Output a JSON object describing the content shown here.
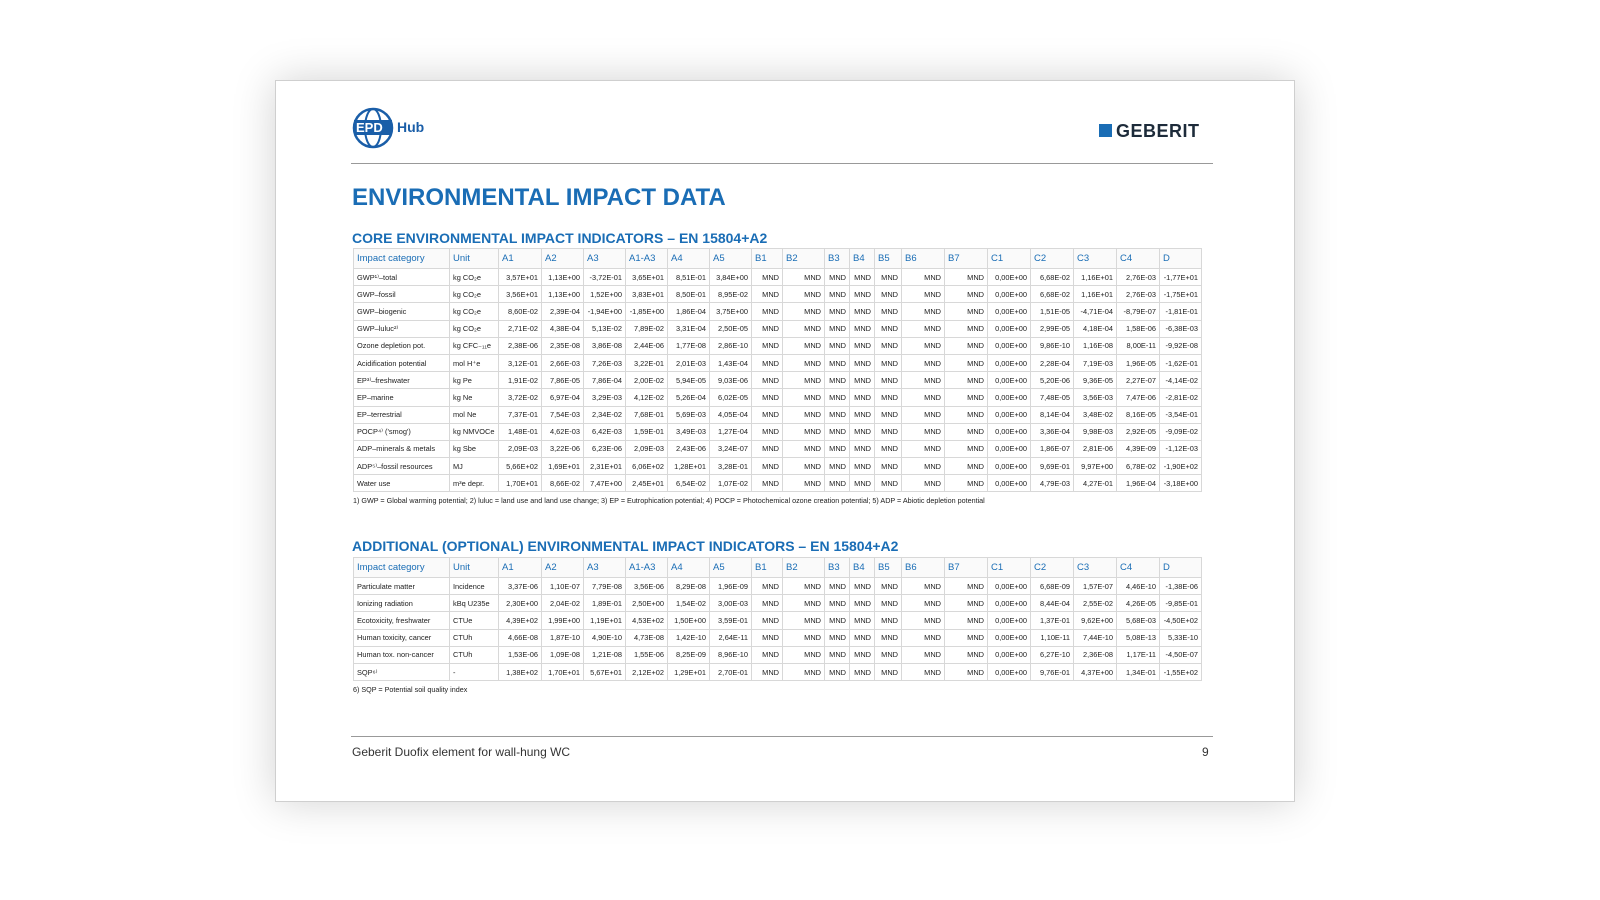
{
  "header": {
    "logo_epd": "EPD",
    "logo_hub": "Hub",
    "brand": "GEBERIT"
  },
  "title": "ENVIRONMENTAL IMPACT DATA",
  "tables": [
    {
      "title": "CORE ENVIRONMENTAL IMPACT INDICATORS – EN 15804+A2",
      "columns": [
        "Impact category",
        "Unit",
        "A1",
        "A2",
        "A3",
        "A1-A3",
        "A4",
        "A5",
        "B1",
        "B2",
        "B3",
        "B4",
        "B5",
        "B6",
        "B7",
        "C1",
        "C2",
        "C3",
        "C4",
        "D"
      ],
      "rows": [
        [
          "GWP¹⁾–total",
          "kg CO₂e",
          "3,57E+01",
          "1,13E+00",
          "-3,72E-01",
          "3,65E+01",
          "8,51E-01",
          "3,84E+00",
          "MND",
          "MND",
          "MND",
          "MND",
          "MND",
          "MND",
          "MND",
          "0,00E+00",
          "6,68E-02",
          "1,16E+01",
          "2,76E-03",
          "-1,77E+01"
        ],
        [
          "GWP–fossil",
          "kg CO₂e",
          "3,56E+01",
          "1,13E+00",
          "1,52E+00",
          "3,83E+01",
          "8,50E-01",
          "8,95E-02",
          "MND",
          "MND",
          "MND",
          "MND",
          "MND",
          "MND",
          "MND",
          "0,00E+00",
          "6,68E-02",
          "1,16E+01",
          "2,76E-03",
          "-1,75E+01"
        ],
        [
          "GWP–biogenic",
          "kg CO₂e",
          "8,60E-02",
          "2,39E-04",
          "-1,94E+00",
          "-1,85E+00",
          "1,86E-04",
          "3,75E+00",
          "MND",
          "MND",
          "MND",
          "MND",
          "MND",
          "MND",
          "MND",
          "0,00E+00",
          "1,51E-05",
          "-4,71E-04",
          "-8,79E-07",
          "-1,81E-01"
        ],
        [
          "GWP–luluc²⁾",
          "kg CO₂e",
          "2,71E-02",
          "4,38E-04",
          "5,13E-02",
          "7,89E-02",
          "3,31E-04",
          "2,50E-05",
          "MND",
          "MND",
          "MND",
          "MND",
          "MND",
          "MND",
          "MND",
          "0,00E+00",
          "2,99E-05",
          "4,18E-04",
          "1,58E-06",
          "-6,38E-03"
        ],
        [
          "Ozone depletion pot.",
          "kg CFC₋₁₁e",
          "2,38E-06",
          "2,35E-08",
          "3,86E-08",
          "2,44E-06",
          "1,77E-08",
          "2,86E-10",
          "MND",
          "MND",
          "MND",
          "MND",
          "MND",
          "MND",
          "MND",
          "0,00E+00",
          "9,86E-10",
          "1,16E-08",
          "8,00E-11",
          "-9,92E-08"
        ],
        [
          "Acidification potential",
          "mol H⁺e",
          "3,12E-01",
          "2,66E-03",
          "7,26E-03",
          "3,22E-01",
          "2,01E-03",
          "1,43E-04",
          "MND",
          "MND",
          "MND",
          "MND",
          "MND",
          "MND",
          "MND",
          "0,00E+00",
          "2,28E-04",
          "7,19E-03",
          "1,96E-05",
          "-1,62E-01"
        ],
        [
          "EP³⁾–freshwater",
          "kg Pe",
          "1,91E-02",
          "7,86E-05",
          "7,86E-04",
          "2,00E-02",
          "5,94E-05",
          "9,03E-06",
          "MND",
          "MND",
          "MND",
          "MND",
          "MND",
          "MND",
          "MND",
          "0,00E+00",
          "5,20E-06",
          "9,36E-05",
          "2,27E-07",
          "-4,14E-02"
        ],
        [
          "EP–marine",
          "kg Ne",
          "3,72E-02",
          "6,97E-04",
          "3,29E-03",
          "4,12E-02",
          "5,26E-04",
          "6,02E-05",
          "MND",
          "MND",
          "MND",
          "MND",
          "MND",
          "MND",
          "MND",
          "0,00E+00",
          "7,48E-05",
          "3,56E-03",
          "7,47E-06",
          "-2,81E-02"
        ],
        [
          "EP–terrestrial",
          "mol Ne",
          "7,37E-01",
          "7,54E-03",
          "2,34E-02",
          "7,68E-01",
          "5,69E-03",
          "4,05E-04",
          "MND",
          "MND",
          "MND",
          "MND",
          "MND",
          "MND",
          "MND",
          "0,00E+00",
          "8,14E-04",
          "3,48E-02",
          "8,16E-05",
          "-3,54E-01"
        ],
        [
          "POCP⁴⁾ ('smog')",
          "kg NMVOCe",
          "1,48E-01",
          "4,62E-03",
          "6,42E-03",
          "1,59E-01",
          "3,49E-03",
          "1,27E-04",
          "MND",
          "MND",
          "MND",
          "MND",
          "MND",
          "MND",
          "MND",
          "0,00E+00",
          "3,36E-04",
          "9,98E-03",
          "2,92E-05",
          "-9,09E-02"
        ],
        [
          "ADP–minerals & metals",
          "kg Sbe",
          "2,09E-03",
          "3,22E-06",
          "6,23E-06",
          "2,09E-03",
          "2,43E-06",
          "3,24E-07",
          "MND",
          "MND",
          "MND",
          "MND",
          "MND",
          "MND",
          "MND",
          "0,00E+00",
          "1,86E-07",
          "2,81E-06",
          "4,39E-09",
          "-1,12E-03"
        ],
        [
          "ADP⁵⁾–fossil resources",
          "MJ",
          "5,66E+02",
          "1,69E+01",
          "2,31E+01",
          "6,06E+02",
          "1,28E+01",
          "3,28E-01",
          "MND",
          "MND",
          "MND",
          "MND",
          "MND",
          "MND",
          "MND",
          "0,00E+00",
          "9,69E-01",
          "9,97E+00",
          "6,78E-02",
          "-1,90E+02"
        ],
        [
          "Water use",
          "m³e depr.",
          "1,70E+01",
          "8,66E-02",
          "7,47E+00",
          "2,45E+01",
          "6,54E-02",
          "1,07E-02",
          "MND",
          "MND",
          "MND",
          "MND",
          "MND",
          "MND",
          "MND",
          "0,00E+00",
          "4,79E-03",
          "4,27E-01",
          "1,96E-04",
          "-3,18E+00"
        ]
      ],
      "footnote": "1) GWP = Global warming potential; 2) luluc = land use and land use change; 3) EP = Eutrophication potential; 4) POCP = Photochemical ozone creation potential; 5) ADP = Abiotic depletion potential"
    },
    {
      "title": "ADDITIONAL (OPTIONAL) ENVIRONMENTAL IMPACT INDICATORS – EN 15804+A2",
      "columns": [
        "Impact category",
        "Unit",
        "A1",
        "A2",
        "A3",
        "A1-A3",
        "A4",
        "A5",
        "B1",
        "B2",
        "B3",
        "B4",
        "B5",
        "B6",
        "B7",
        "C1",
        "C2",
        "C3",
        "C4",
        "D"
      ],
      "rows": [
        [
          "Particulate matter",
          "Incidence",
          "3,37E-06",
          "1,10E-07",
          "7,79E-08",
          "3,56E-06",
          "8,29E-08",
          "1,96E-09",
          "MND",
          "MND",
          "MND",
          "MND",
          "MND",
          "MND",
          "MND",
          "0,00E+00",
          "6,68E-09",
          "1,57E-07",
          "4,46E-10",
          "-1,38E-06"
        ],
        [
          "Ionizing radiation",
          "kBq U235e",
          "2,30E+00",
          "2,04E-02",
          "1,89E-01",
          "2,50E+00",
          "1,54E-02",
          "3,00E-03",
          "MND",
          "MND",
          "MND",
          "MND",
          "MND",
          "MND",
          "MND",
          "0,00E+00",
          "8,44E-04",
          "2,55E-02",
          "4,26E-05",
          "-9,85E-01"
        ],
        [
          "Ecotoxicity, freshwater",
          "CTUe",
          "4,39E+02",
          "1,99E+00",
          "1,19E+01",
          "4,53E+02",
          "1,50E+00",
          "3,59E-01",
          "MND",
          "MND",
          "MND",
          "MND",
          "MND",
          "MND",
          "MND",
          "0,00E+00",
          "1,37E-01",
          "9,62E+00",
          "5,68E-03",
          "-4,50E+02"
        ],
        [
          "Human toxicity, cancer",
          "CTUh",
          "4,66E-08",
          "1,87E-10",
          "4,90E-10",
          "4,73E-08",
          "1,42E-10",
          "2,64E-11",
          "MND",
          "MND",
          "MND",
          "MND",
          "MND",
          "MND",
          "MND",
          "0,00E+00",
          "1,10E-11",
          "7,44E-10",
          "5,08E-13",
          "5,33E-10"
        ],
        [
          "Human tox. non-cancer",
          "CTUh",
          "1,53E-06",
          "1,09E-08",
          "1,21E-08",
          "1,55E-06",
          "8,25E-09",
          "8,96E-10",
          "MND",
          "MND",
          "MND",
          "MND",
          "MND",
          "MND",
          "MND",
          "0,00E+00",
          "6,27E-10",
          "2,36E-08",
          "1,17E-11",
          "-4,50E-07"
        ],
        [
          "SQP⁶⁾",
          "-",
          "1,38E+02",
          "1,70E+01",
          "5,67E+01",
          "2,12E+02",
          "1,29E+01",
          "2,70E-01",
          "MND",
          "MND",
          "MND",
          "MND",
          "MND",
          "MND",
          "MND",
          "0,00E+00",
          "9,76E-01",
          "4,37E+00",
          "1,34E-01",
          "-1,55E+02"
        ]
      ],
      "footnote": "6) SQP = Potential soil quality index"
    }
  ],
  "footer": {
    "text": "Geberit Duofix element for wall-hung WC",
    "page": "9"
  }
}
